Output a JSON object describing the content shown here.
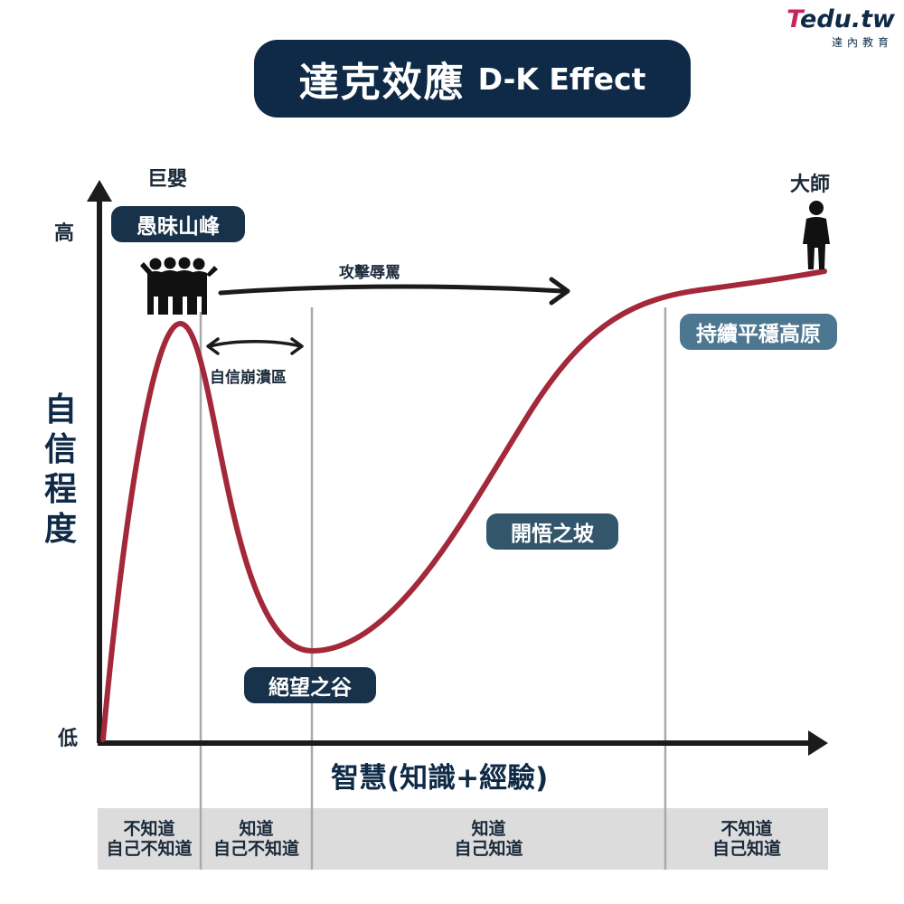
{
  "logo": {
    "brand_t": "T",
    "brand_rest": "edu.tw",
    "sub": "達內教育"
  },
  "title": {
    "zh": "達克效應",
    "en": "D-K Effect"
  },
  "axes": {
    "y_label": "自信程度",
    "y_high": "高",
    "y_low": "低",
    "x_label": "智慧(知識+經驗)"
  },
  "labels": {
    "infant": "巨嬰",
    "master": "大師",
    "peak": "愚昧山峰",
    "attack": "攻擊辱罵",
    "collapse": "自信崩潰區",
    "valley": "絕望之谷",
    "slope": "開悟之坡",
    "plateau": "持續平穩高原"
  },
  "zones": [
    {
      "line1": "不知道",
      "line2": "自己不知道"
    },
    {
      "line1": "知道",
      "line2": "自己不知道"
    },
    {
      "line1": "知道",
      "line2": "自己知道"
    },
    {
      "line1": "不知道",
      "line2": "自己知道"
    }
  ],
  "colors": {
    "navy": "#0e2a47",
    "curve": "#a3283a",
    "divider": "#a9a9a9",
    "axis": "#1b1b1b"
  }
}
